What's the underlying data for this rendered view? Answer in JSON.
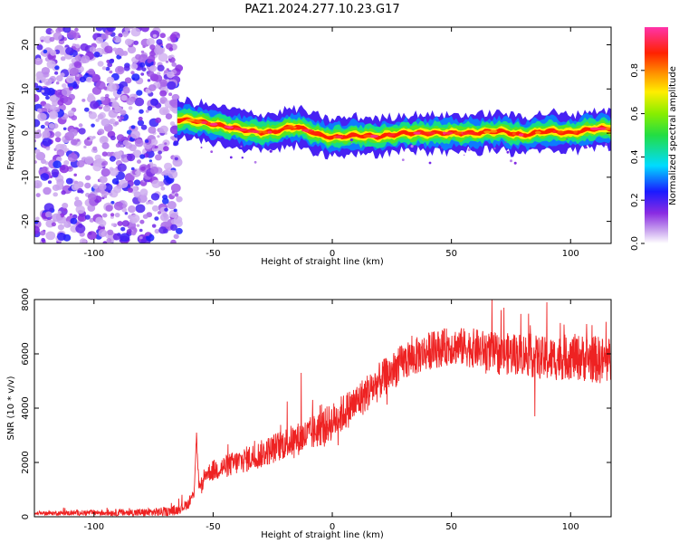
{
  "title": "PAZ1.2024.277.10.23.G17",
  "chart_data": [
    {
      "type": "heatmap",
      "xlabel": "Height of straight line (km)",
      "ylabel": "Frequency (Hz)",
      "xlim": [
        -125,
        117
      ],
      "ylim": [
        -25,
        24
      ],
      "xticks": [
        -100,
        -50,
        0,
        50,
        100
      ],
      "yticks": [
        -20,
        -10,
        0,
        10,
        20
      ],
      "colorbar": {
        "label": "Normalized spectral amplitude",
        "range": [
          0,
          1
        ],
        "ticks": [
          0.0,
          0.2,
          0.4,
          0.6,
          0.8
        ],
        "tick_labels": [
          "0.0",
          "0.2",
          "0.4",
          "0.6",
          "0.8"
        ],
        "colormap": "rainbow (white to violet to blue to cyan to green to yellow to red to magenta)"
      },
      "noise_region": {
        "x": [
          -125,
          -64
        ],
        "frequency_spread": [
          -25,
          24
        ],
        "amplitude": [
          0.05,
          0.25
        ]
      },
      "signal_ridge": {
        "x": [
          -65,
          -60,
          -55,
          -50,
          -45,
          -40,
          -35,
          -30,
          -25,
          -20,
          -15,
          -10,
          -5,
          0,
          10,
          20,
          30,
          40,
          50,
          60,
          70,
          80,
          90,
          100,
          110,
          117
        ],
        "frequency": [
          3,
          3,
          2.5,
          2,
          1.5,
          1,
          0.5,
          0.2,
          0.2,
          1,
          1.5,
          0.5,
          -0.5,
          -1,
          -0.5,
          -0.8,
          0,
          0,
          0,
          0,
          0.5,
          -0.5,
          0.5,
          0,
          1,
          1
        ]
      },
      "grid": false
    },
    {
      "type": "line",
      "xlabel": "Height of straight line (km)",
      "ylabel": "SNR (10 * v/v)",
      "xlim": [
        -125,
        117
      ],
      "ylim": [
        0,
        8000
      ],
      "xticks": [
        -100,
        -50,
        0,
        50,
        100
      ],
      "yticks": [
        0,
        2000,
        4000,
        6000,
        8000
      ],
      "color": "#ee2222",
      "grid": false,
      "trend": {
        "x": [
          -125,
          -100,
          -80,
          -70,
          -65,
          -60,
          -58,
          -57,
          -56,
          -55,
          -53,
          -50,
          -40,
          -30,
          -20,
          -10,
          0,
          10,
          20,
          30,
          40,
          50,
          60,
          70,
          80,
          90,
          100,
          110,
          117
        ],
        "y": [
          120,
          150,
          150,
          180,
          250,
          500,
          900,
          3000,
          1200,
          1000,
          1600,
          1700,
          2000,
          2300,
          2700,
          3000,
          3500,
          4200,
          5000,
          5700,
          6100,
          6300,
          6200,
          6000,
          6000,
          5800,
          5900,
          5800,
          5700
        ]
      },
      "noise_amplitude": {
        "x": [
          -125,
          -55,
          -50,
          0,
          50,
          117
        ],
        "y": [
          60,
          200,
          400,
          700,
          700,
          900
        ]
      },
      "spikes": [
        {
          "x": -57,
          "y": 3100
        },
        {
          "x": -13,
          "y": 5300
        },
        {
          "x": 67,
          "y": 8000
        },
        {
          "x": 72,
          "y": 7700
        },
        {
          "x": 90,
          "y": 7900
        },
        {
          "x": 85,
          "y": 3700
        }
      ]
    }
  ]
}
